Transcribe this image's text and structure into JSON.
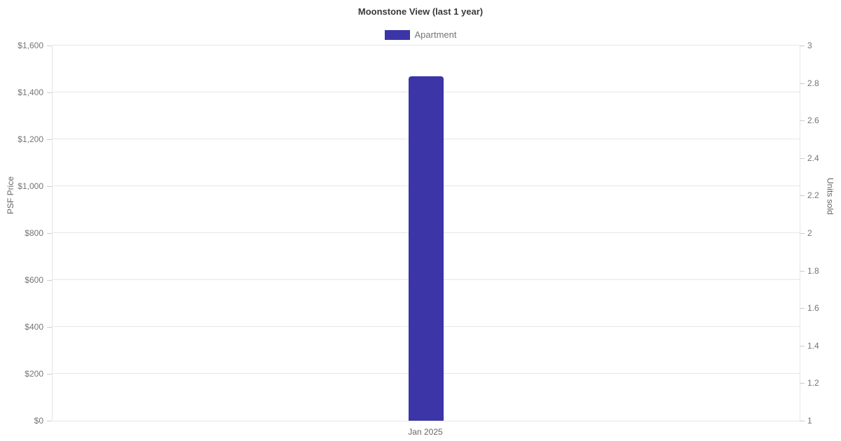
{
  "chart_data": {
    "type": "bar",
    "title": "Moonstone View (last 1 year)",
    "categories": [
      "Jan 2025"
    ],
    "series": [
      {
        "name": "Apartment",
        "axis": "left",
        "values": [
          1470
        ],
        "color": "#3b35a8"
      }
    ],
    "left_axis": {
      "label": "PSF Price",
      "range": [
        0,
        1600
      ],
      "tick_values": [
        0,
        200,
        400,
        600,
        800,
        1000,
        1200,
        1400,
        1600
      ],
      "tick_labels": [
        "$0",
        "$200",
        "$400",
        "$600",
        "$800",
        "$1,000",
        "$1,200",
        "$1,400",
        "$1,600"
      ]
    },
    "right_axis": {
      "label": "Units sold",
      "range": [
        1,
        3
      ],
      "tick_values": [
        1,
        1.2,
        1.4,
        1.6,
        1.8,
        2,
        2.2,
        2.4,
        2.6,
        2.8,
        3
      ],
      "tick_labels": [
        "1",
        "1.2",
        "1.4",
        "1.6",
        "1.8",
        "2",
        "2.2",
        "2.4",
        "2.6",
        "2.8",
        "3"
      ]
    },
    "grid": true,
    "legend_position": "top",
    "colors": {
      "gridline": "#e6e6e6",
      "tick": "#cccccc",
      "label_text": "#757575",
      "title_text": "#3a3a3a"
    }
  }
}
